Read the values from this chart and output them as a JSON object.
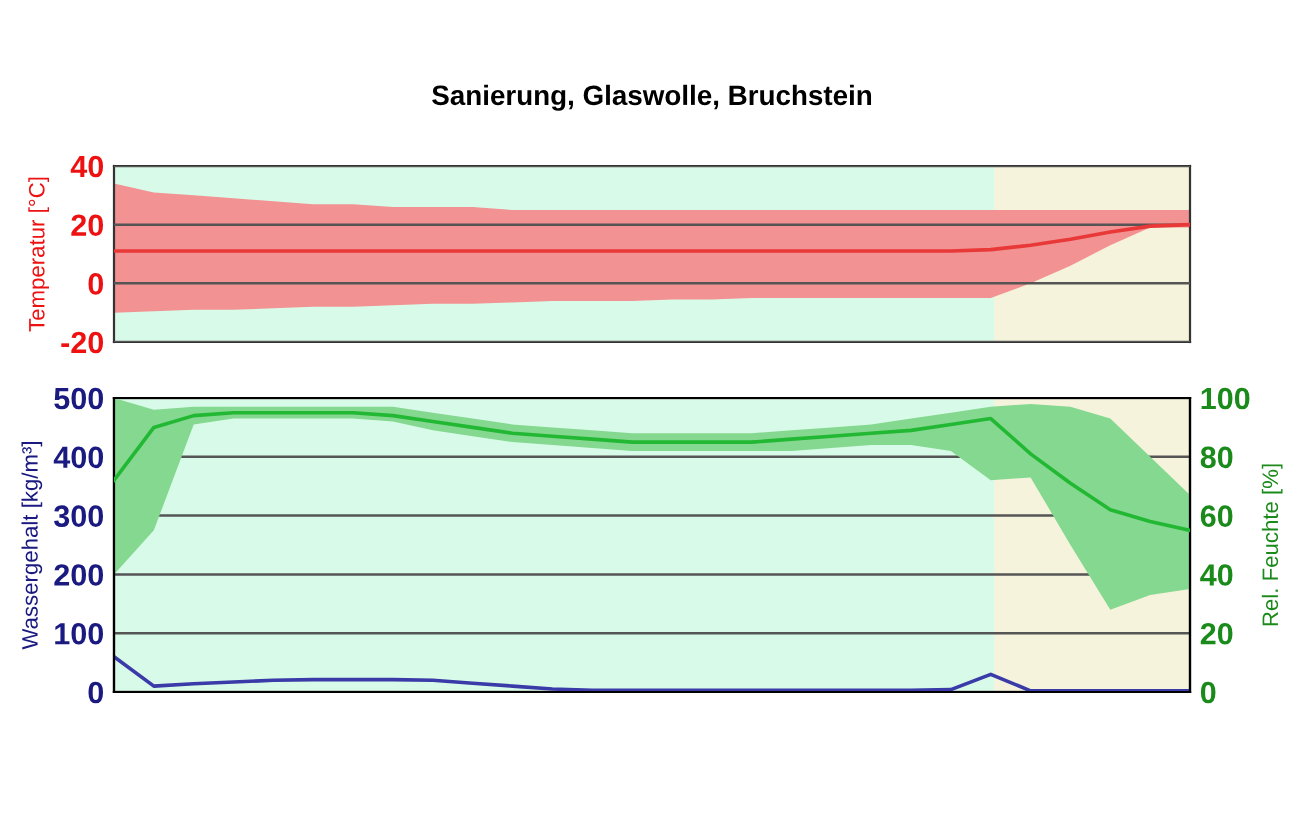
{
  "chart_data": [
    {
      "type": "line",
      "title": "Sanierung, Glaswolle, Bruchstein",
      "ylabel": "Temperatur [°C]",
      "categories": [
        null,
        null,
        null,
        null,
        null,
        null,
        null,
        null,
        null,
        null,
        null,
        null,
        null,
        null,
        null,
        null,
        null,
        null,
        null,
        null,
        null,
        null,
        null,
        null,
        null,
        null,
        null,
        null
      ],
      "series": [
        {
          "color": "#e83838",
          "values": [
            11,
            11,
            11,
            11,
            11,
            11,
            11,
            11,
            11,
            11,
            11,
            11,
            11,
            11,
            11,
            11,
            11,
            11,
            11,
            11,
            11,
            11,
            11.5,
            13,
            15,
            17.5,
            19.5,
            20
          ],
          "upper": [
            34,
            31,
            30,
            29,
            28,
            27,
            27,
            26,
            26,
            26,
            25,
            25,
            25,
            25,
            25,
            25,
            25,
            25,
            25,
            25,
            25,
            25,
            25,
            25,
            25,
            25,
            25,
            25
          ],
          "lower": [
            -10,
            -9.5,
            -9,
            -9,
            -8.5,
            -8,
            -8,
            -7.5,
            -7,
            -7,
            -6.5,
            -6,
            -6,
            -6,
            -5.5,
            -5.5,
            -5,
            -5,
            -5,
            -5,
            -5,
            -5,
            -5,
            0,
            6,
            13,
            19,
            19
          ]
        }
      ],
      "ylim": [
        -20,
        40
      ],
      "yticks": [
        -20,
        0,
        20,
        40
      ],
      "grid": "y",
      "tick_labels": "y"
    },
    {
      "type": "line",
      "ylabel": "Wassergehalt [kg/m³]",
      "y2label": "Rel. Feuchte [%]",
      "categories": [
        null,
        null,
        null,
        null,
        null,
        null,
        null,
        null,
        null,
        null,
        null,
        null,
        null,
        null,
        null,
        null,
        null,
        null,
        null,
        null,
        null,
        null,
        null,
        null,
        null,
        null,
        null,
        null
      ],
      "series": [
        {
          "color": "#3a3aa8",
          "axis": "y",
          "values": [
            60,
            10,
            14,
            17,
            20,
            21,
            21,
            21,
            20,
            15,
            10,
            5,
            3,
            3,
            3,
            3,
            3,
            3,
            3,
            3,
            3,
            4,
            30,
            2,
            2,
            2,
            2,
            2
          ]
        },
        {
          "color": "#22b833",
          "axis": "y2",
          "values": [
            72,
            90,
            94,
            95,
            95,
            95,
            95,
            94,
            92,
            90,
            88,
            87,
            86,
            85,
            85,
            85,
            85,
            86,
            87,
            88,
            89,
            91,
            93,
            81,
            71,
            62,
            58,
            55
          ],
          "upper": [
            100,
            96,
            97,
            97,
            97,
            97,
            97,
            97,
            95,
            93,
            91,
            90,
            89,
            88,
            88,
            88,
            88,
            89,
            90,
            91,
            93,
            95,
            97,
            98,
            97,
            93,
            80,
            67
          ],
          "lower": [
            40,
            55,
            91,
            93,
            93,
            93,
            93,
            92,
            89,
            87,
            85,
            84,
            83,
            82,
            82,
            82,
            82,
            82,
            83,
            84,
            84,
            82,
            72,
            73,
            50,
            28,
            33,
            35
          ]
        }
      ],
      "ylim": [
        0,
        500
      ],
      "yticks": [
        0,
        100,
        200,
        300,
        400,
        500
      ],
      "y2lim": [
        0,
        100
      ],
      "y2ticks": [
        0,
        20,
        40,
        60,
        80,
        100
      ],
      "grid": "y",
      "tick_labels": "y"
    }
  ]
}
